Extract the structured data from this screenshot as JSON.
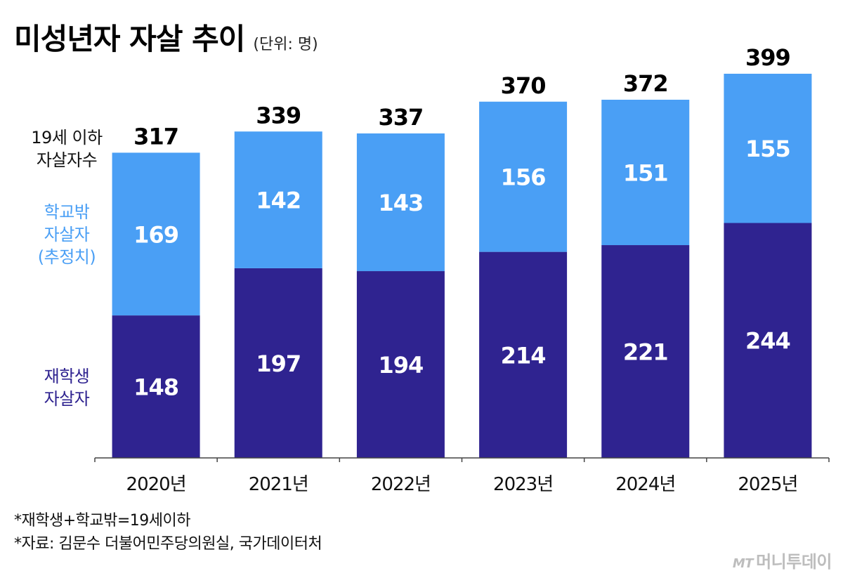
{
  "title": "미성년자 자살 추이",
  "unit": "(단위: 명)",
  "side_labels": {
    "total": [
      "19세 이하",
      "자살자수"
    ],
    "out_of_school": [
      "학교밖",
      "자살자",
      "(추정치)"
    ],
    "in_school": [
      "재학생",
      "자살자"
    ]
  },
  "notes": [
    "*재학생+학교밖=19세이하",
    "*자료: 김문수 더불어민주당의원실, 국가데이터처"
  ],
  "logo": {
    "mark": "MT",
    "text": "머니투데이"
  },
  "colors": {
    "in_school": "#2f2390",
    "out_of_school": "#4a9ff5",
    "axis": "#444444"
  },
  "chart_data": {
    "type": "bar",
    "stacked": true,
    "categories": [
      "2020년",
      "2021년",
      "2022년",
      "2023년",
      "2024년",
      "2025년"
    ],
    "series": [
      {
        "name": "재학생 자살자",
        "values": [
          148,
          197,
          194,
          214,
          221,
          244
        ]
      },
      {
        "name": "학교밖 자살자 (추정치)",
        "values": [
          169,
          142,
          143,
          156,
          151,
          155
        ]
      }
    ],
    "totals": [
      317,
      339,
      337,
      370,
      372,
      399
    ],
    "ylim": [
      0,
      399
    ],
    "grid": false,
    "legend": "left side labels"
  }
}
